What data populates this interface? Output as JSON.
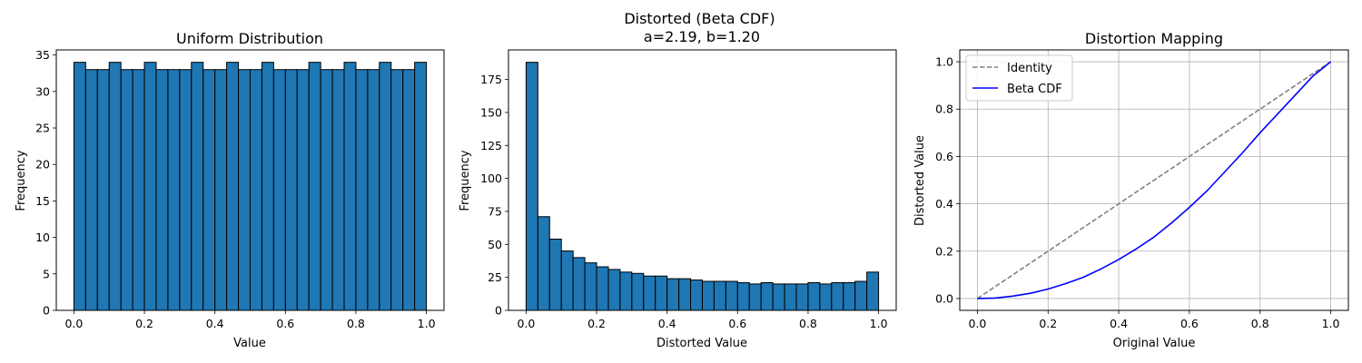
{
  "chart_data": [
    {
      "type": "bar",
      "title": "Uniform Distribution",
      "xlabel": "Value",
      "ylabel": "Frequency",
      "xlim": [
        -0.05,
        1.05
      ],
      "ylim": [
        0,
        35.7
      ],
      "xticks": [
        0.0,
        0.2,
        0.4,
        0.6,
        0.8,
        1.0
      ],
      "xtick_labels": [
        "0.0",
        "0.2",
        "0.4",
        "0.6",
        "0.8",
        "1.0"
      ],
      "yticks": [
        0,
        5,
        10,
        15,
        20,
        25,
        30,
        35
      ],
      "ytick_labels": [
        "0",
        "5",
        "10",
        "15",
        "20",
        "25",
        "30",
        "35"
      ],
      "bin_range": [
        0,
        1
      ],
      "bar_color": "#1f77b4",
      "edge_color": "#000000",
      "grid": false,
      "values": [
        34,
        33,
        33,
        34,
        33,
        33,
        34,
        33,
        33,
        33,
        34,
        33,
        33,
        34,
        33,
        33,
        34,
        33,
        33,
        33,
        34,
        33,
        33,
        34,
        33,
        33,
        34,
        33,
        33,
        34
      ]
    },
    {
      "type": "bar",
      "title": "Distorted (Beta CDF)\na=2.19, b=1.20",
      "xlabel": "Distorted Value",
      "ylabel": "Frequency",
      "xlim": [
        -0.05,
        1.05
      ],
      "ylim": [
        0,
        197.4
      ],
      "xticks": [
        0.0,
        0.2,
        0.4,
        0.6,
        0.8,
        1.0
      ],
      "xtick_labels": [
        "0.0",
        "0.2",
        "0.4",
        "0.6",
        "0.8",
        "1.0"
      ],
      "yticks": [
        0,
        25,
        50,
        75,
        100,
        125,
        150,
        175
      ],
      "ytick_labels": [
        "0",
        "25",
        "50",
        "75",
        "100",
        "125",
        "150",
        "175"
      ],
      "bin_range": [
        0,
        1
      ],
      "bar_color": "#1f77b4",
      "edge_color": "#000000",
      "grid": false,
      "values": [
        188,
        71,
        54,
        45,
        40,
        36,
        33,
        31,
        29,
        28,
        26,
        26,
        24,
        24,
        23,
        22,
        22,
        22,
        21,
        20,
        21,
        20,
        20,
        20,
        21,
        20,
        21,
        21,
        22,
        29
      ]
    },
    {
      "type": "line",
      "title": "Distortion Mapping",
      "xlabel": "Original Value",
      "ylabel": "Distorted Value",
      "xlim": [
        -0.05,
        1.05
      ],
      "ylim": [
        -0.05,
        1.05
      ],
      "xticks": [
        0.0,
        0.2,
        0.4,
        0.6,
        0.8,
        1.0
      ],
      "xtick_labels": [
        "0.0",
        "0.2",
        "0.4",
        "0.6",
        "0.8",
        "1.0"
      ],
      "yticks": [
        0.0,
        0.2,
        0.4,
        0.6,
        0.8,
        1.0
      ],
      "ytick_labels": [
        "0.0",
        "0.2",
        "0.4",
        "0.6",
        "0.8",
        "1.0"
      ],
      "grid": true,
      "legend_position": "upper-left",
      "series": [
        {
          "name": "Identity",
          "color": "#808080",
          "dash": true,
          "x": [
            0.0,
            1.0
          ],
          "y": [
            0.0,
            1.0
          ]
        },
        {
          "name": "Beta CDF",
          "color": "#0000ff",
          "dash": false,
          "x": [
            0.0,
            0.05,
            0.1,
            0.15,
            0.2,
            0.25,
            0.3,
            0.35,
            0.4,
            0.45,
            0.5,
            0.55,
            0.6,
            0.65,
            0.7,
            0.75,
            0.8,
            0.85,
            0.9,
            0.95,
            1.0
          ],
          "y": [
            0.0,
            0.002,
            0.01,
            0.022,
            0.04,
            0.063,
            0.09,
            0.125,
            0.165,
            0.21,
            0.26,
            0.32,
            0.385,
            0.455,
            0.535,
            0.615,
            0.7,
            0.78,
            0.86,
            0.94,
            1.0
          ]
        }
      ]
    }
  ]
}
